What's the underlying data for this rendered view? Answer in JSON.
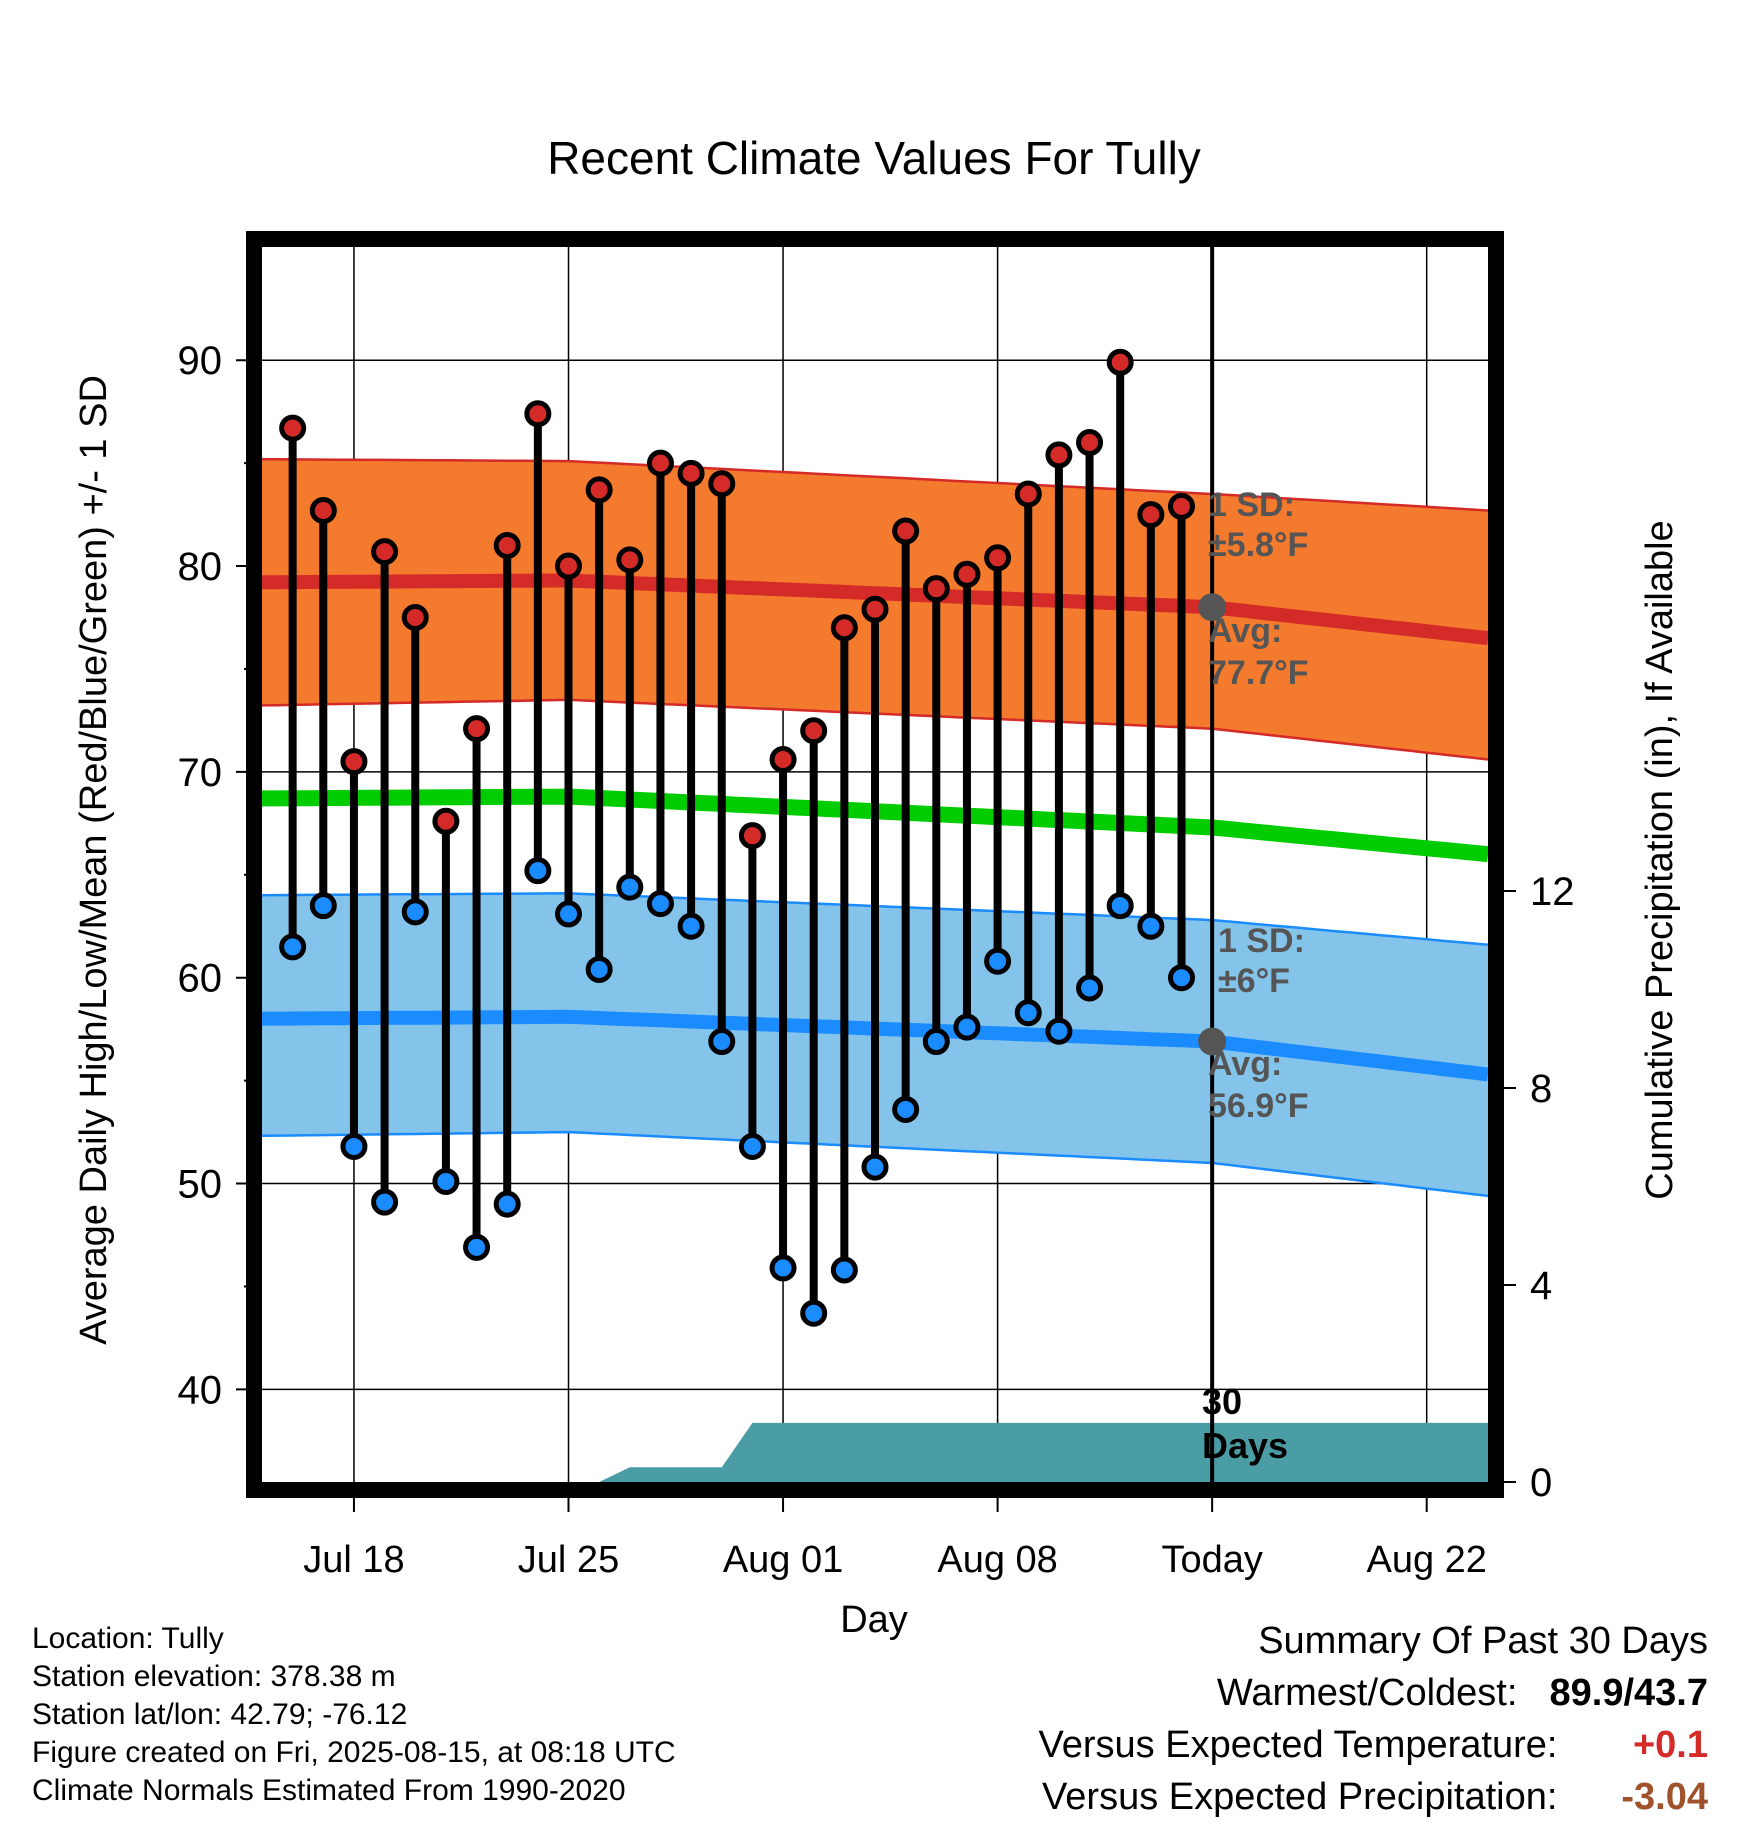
{
  "chart_data": {
    "type": "line",
    "title": "Recent Climate Values For Tully",
    "xlabel": "Day",
    "ylabel": "Average Daily High/Low/Mean (Red/Blue/Green) +/- 1 SD",
    "ylabel_right": "Cumulative Precipitation (in), If Available",
    "ylim": [
      35.5,
      95.5
    ],
    "y_ticks": [
      40,
      50,
      60,
      70,
      80,
      90
    ],
    "y_right_ticks": [
      0,
      4,
      8,
      12
    ],
    "y_right_lim": [
      0,
      12
    ],
    "x_tick_labels": [
      "Jul 18",
      "Jul 25",
      "Aug 01",
      "Aug 08",
      "Today",
      "Aug 22"
    ],
    "x_tick_days": [
      -27,
      -20,
      -13,
      -6,
      1,
      8
    ],
    "x_range_days": [
      -30,
      10
    ],
    "today_label": "30 Days",
    "observed": {
      "days": [
        -29,
        -28,
        -27,
        -26,
        -25,
        -24,
        -23,
        -22,
        -21,
        -20,
        -19,
        -18,
        -17,
        -16,
        -15,
        -14,
        -13,
        -12,
        -11,
        -10,
        -9,
        -8,
        -7,
        -6,
        -5,
        -4,
        -3,
        -2,
        -1,
        0
      ],
      "highs": [
        86.7,
        82.7,
        70.5,
        80.7,
        77.5,
        67.6,
        72.1,
        81.0,
        87.4,
        80.0,
        83.7,
        80.3,
        85.0,
        84.5,
        84.0,
        66.9,
        70.6,
        72.0,
        77.0,
        77.9,
        81.7,
        78.9,
        79.6,
        80.4,
        83.5,
        85.4,
        86.0,
        89.9,
        82.5,
        82.9
      ],
      "lows": [
        61.5,
        63.5,
        51.8,
        49.1,
        63.2,
        50.1,
        46.9,
        49.0,
        65.2,
        63.1,
        60.4,
        64.4,
        63.6,
        62.5,
        56.9,
        51.8,
        45.9,
        43.7,
        45.8,
        50.8,
        53.6,
        56.9,
        57.6,
        60.8,
        58.3,
        57.4,
        59.5,
        63.5,
        62.5,
        60.0
      ]
    },
    "normals": {
      "high_avg": [
        79.2,
        79.3,
        78.0,
        76.5
      ],
      "high_upper": [
        85.2,
        85.1,
        83.5,
        82.7
      ],
      "high_lower": [
        73.2,
        73.5,
        72.1,
        70.6
      ],
      "mean_avg": [
        68.7,
        68.8,
        67.3,
        66.0
      ],
      "low_avg": [
        58.0,
        58.1,
        56.9,
        55.3
      ],
      "low_upper": [
        64.0,
        64.1,
        62.8,
        61.6
      ],
      "low_lower": [
        52.3,
        52.5,
        51.0,
        49.4
      ]
    },
    "normals_days": [
      -31,
      -20,
      1,
      10
    ],
    "precip": {
      "days": [
        -19,
        -18,
        -15,
        -14,
        10
      ],
      "cumulative": [
        0,
        0.3,
        0.3,
        1.2,
        1.2
      ]
    },
    "annotations": {
      "high_sd_title": "1 SD:",
      "high_sd_value": "±5.8°F",
      "high_avg_title": "Avg:",
      "high_avg_value": "77.7°F",
      "low_sd_title": "1 SD:",
      "low_sd_value": "±6°F",
      "low_avg_title": "Avg:",
      "low_avg_value": "56.9°F"
    },
    "colors": {
      "high_band": "#f47a2e",
      "high_line": "#d42a28",
      "mean_line": "#00cc00",
      "low_band": "#85c4ea",
      "low_line": "#1a8cff",
      "precip": "#4a9ca5",
      "high_dot": "#d42a28",
      "low_dot": "#1a8cff",
      "marker": "#555555"
    }
  },
  "footer": {
    "location": "Location: Tully",
    "elevation": "Station elevation: 378.38 m",
    "latlon": "Station lat/lon: 42.79; -76.12",
    "created": "Figure created on Fri, 2025-08-15, at 08:18 UTC",
    "normals": "Climate Normals Estimated From 1990-2020"
  },
  "summary": {
    "title": "Summary Of Past 30 Days",
    "warm_cold_label": "Warmest/Coldest:",
    "warm_cold_value": "89.9/43.7",
    "temp_label": "Versus Expected Temperature:",
    "temp_value": "+0.1",
    "precip_label": "Versus Expected Precipitation:",
    "precip_value": "-3.04",
    "temp_color": "#d42a28",
    "precip_color": "#a0522d"
  }
}
